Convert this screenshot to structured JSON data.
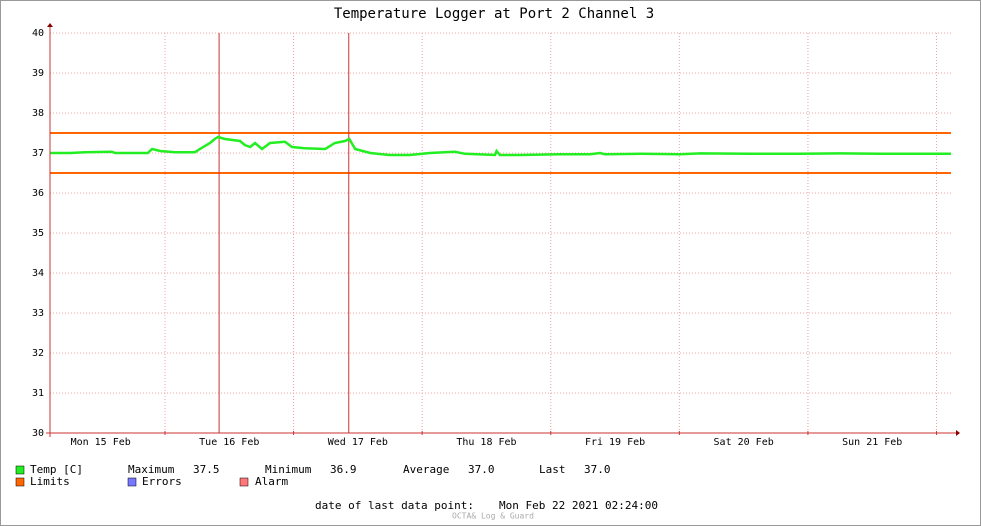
{
  "title": "Temperature Logger at Port 2 Channel 3",
  "chart_data": {
    "type": "line",
    "xlim": [
      2.54,
      170.7
    ],
    "xticks": [
      {
        "value": 12,
        "label": "Mon 15 Feb"
      },
      {
        "value": 36,
        "label": "Tue 16 Feb"
      },
      {
        "value": 60,
        "label": "Wed 17 Feb"
      },
      {
        "value": 84,
        "label": "Thu 18 Feb"
      },
      {
        "value": 108,
        "label": "Fri 19 Feb"
      },
      {
        "value": 132,
        "label": "Sat 20 Feb"
      },
      {
        "value": 156,
        "label": "Sun 21 Feb"
      }
    ],
    "xgrid": [
      24,
      48,
      72,
      96,
      120,
      144,
      168
    ],
    "ylim": [
      30,
      40
    ],
    "yticks": [
      30,
      31,
      32,
      33,
      34,
      35,
      36,
      37,
      38,
      39,
      40
    ],
    "grid": true,
    "series": [
      {
        "name": "Temp [C]",
        "color": "#22ee22",
        "x": [
          2.5,
          6.3,
          9.1,
          14.1,
          14.7,
          20.8,
          21.6,
          23.1,
          25.9,
          29.6,
          30.5,
          32.4,
          33.3,
          33.9,
          35.2,
          38.0,
          38.9,
          39.9,
          40.8,
          42.1,
          43.6,
          46.4,
          47.7,
          50.1,
          53.9,
          55.7,
          57.6,
          58.4,
          59.5,
          62.3,
          65.9,
          69.7,
          73.4,
          78.1,
          80.0,
          85.6,
          85.9,
          86.5,
          90.2,
          97.7,
          103.3,
          105.2,
          106.1,
          112.7,
          120.1,
          123.9,
          133.2,
          142.5,
          150.0,
          157.5,
          165.0,
          170.7
        ],
        "values": [
          37.0,
          37.0,
          37.02,
          37.03,
          37.0,
          37.0,
          37.1,
          37.05,
          37.02,
          37.02,
          37.1,
          37.25,
          37.35,
          37.4,
          37.35,
          37.3,
          37.2,
          37.15,
          37.25,
          37.1,
          37.25,
          37.28,
          37.15,
          37.12,
          37.1,
          37.25,
          37.3,
          37.35,
          37.1,
          37.0,
          36.95,
          36.95,
          37.0,
          37.03,
          36.98,
          36.95,
          37.05,
          36.95,
          36.95,
          36.97,
          36.97,
          37.0,
          36.97,
          36.98,
          36.97,
          36.99,
          36.98,
          36.98,
          36.99,
          36.98,
          36.98,
          36.98
        ]
      }
    ],
    "limits": {
      "name": "Limits",
      "color": "#ff6600",
      "values": [
        36.5,
        37.5
      ]
    },
    "errors": {
      "name": "Errors",
      "color": "#7777ff"
    },
    "alarms": {
      "name": "Alarm",
      "color": "#ff7777",
      "line_color": "#cc3333",
      "x": [
        34.1,
        58.3
      ]
    }
  },
  "stats": [
    {
      "label": "Maximum",
      "value": "37.5"
    },
    {
      "label": "Minimum",
      "value": "36.9"
    },
    {
      "label": "Average",
      "value": "37.0"
    },
    {
      "label": "Last",
      "value": "37.0"
    }
  ],
  "footer": {
    "label": "date of last data point:",
    "value": "Mon Feb 22 2021 02:24:00"
  },
  "watermark": "OCTA& Log & Guard"
}
